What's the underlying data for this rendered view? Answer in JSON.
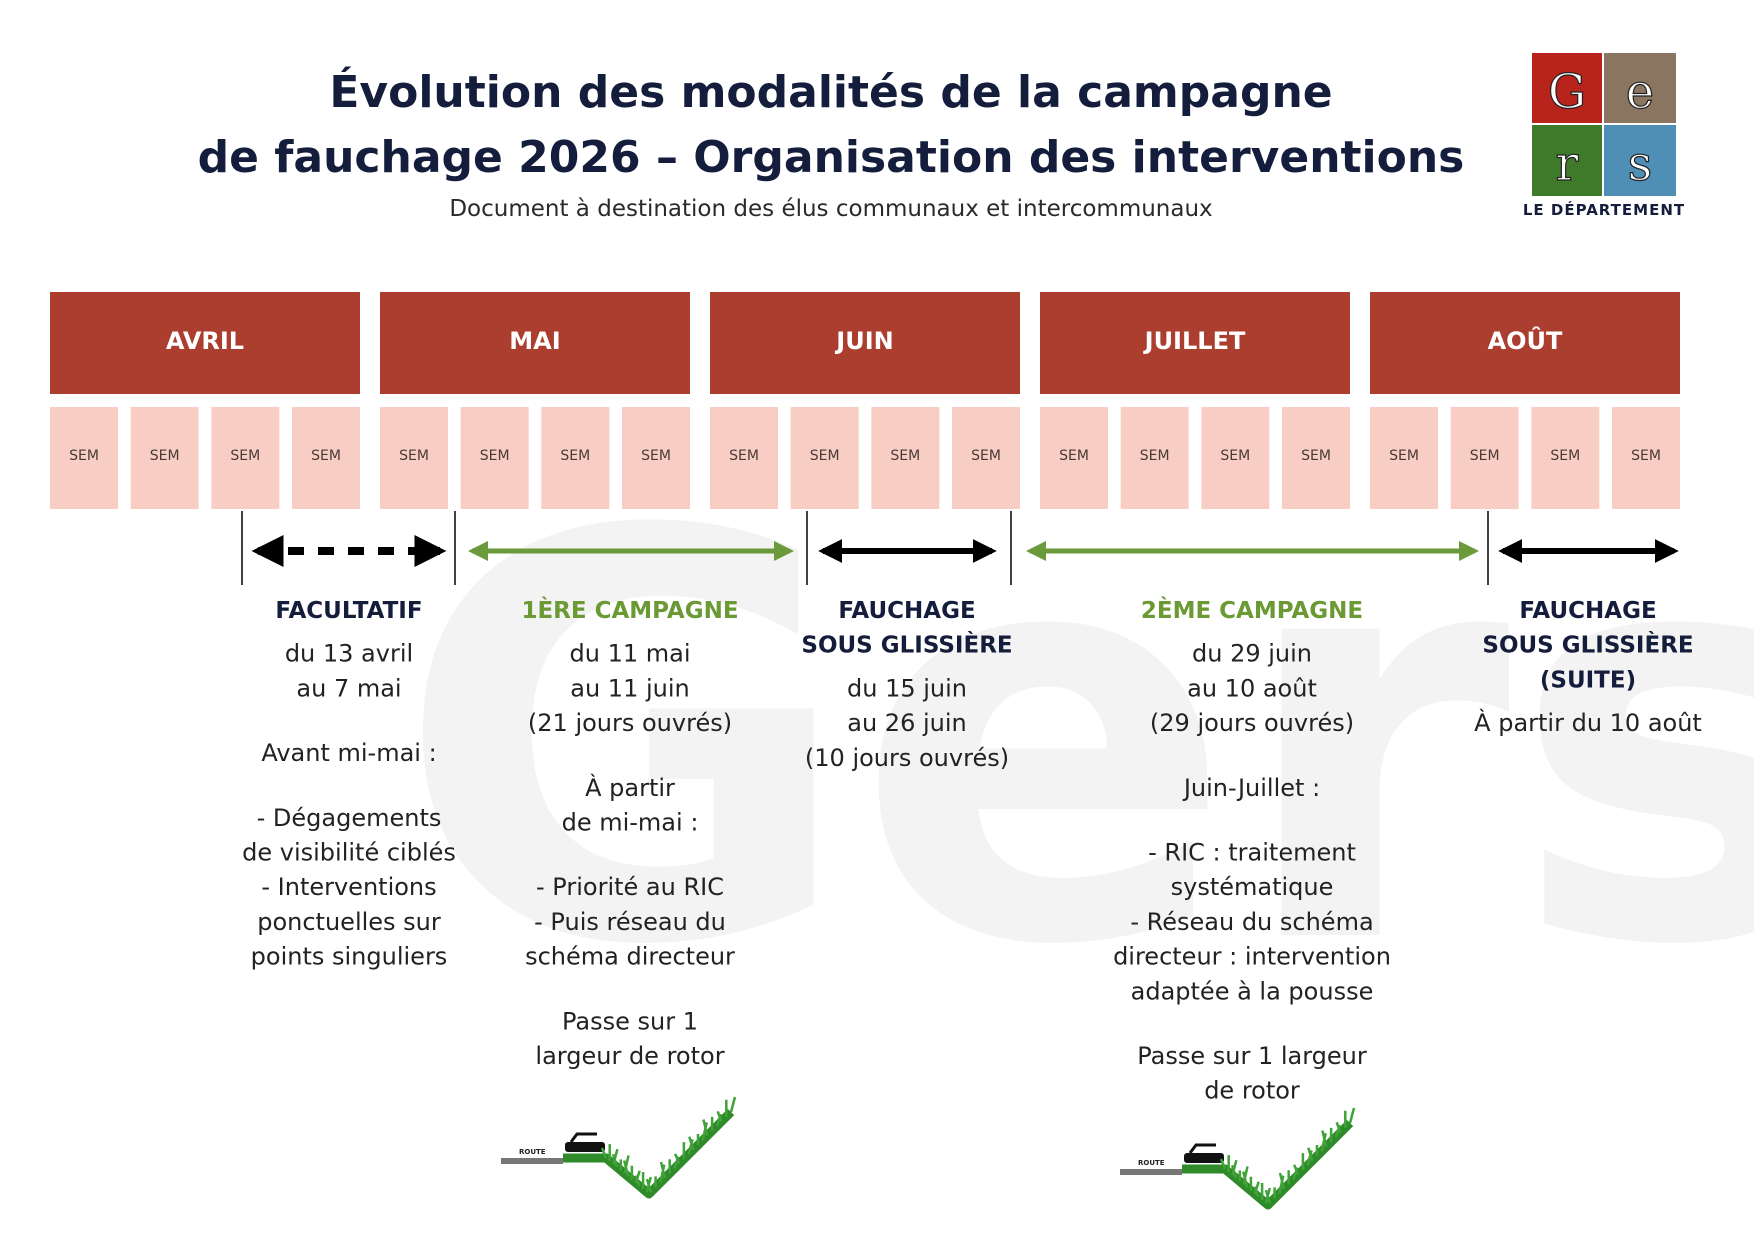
{
  "header": {
    "title_lines": [
      "Évolution des modalités de la campagne",
      "de fauchage 2026 – Organisation des interventions"
    ],
    "subtitle": "Document à destination des élus communaux et intercommunaux"
  },
  "logo": {
    "letters": [
      "G",
      "e",
      "r",
      "s"
    ],
    "caption": "LE DÉPARTEMENT"
  },
  "watermark": "Gers",
  "months": [
    {
      "name": "AVRIL",
      "weeks": [
        "SEM",
        "SEM",
        "SEM",
        "SEM"
      ]
    },
    {
      "name": "MAI",
      "weeks": [
        "SEM",
        "SEM",
        "SEM",
        "SEM"
      ]
    },
    {
      "name": "JUIN",
      "weeks": [
        "SEM",
        "SEM",
        "SEM",
        "SEM"
      ]
    },
    {
      "name": "JUILLET",
      "weeks": [
        "SEM",
        "SEM",
        "SEM",
        "SEM"
      ]
    },
    {
      "name": "AOÛT",
      "weeks": [
        "SEM",
        "SEM",
        "SEM",
        "SEM"
      ]
    }
  ],
  "phases": [
    {
      "title_lines": [
        "FACULTATIF"
      ],
      "paragraphs": [
        [
          "du 13 avril",
          "au 7 mai"
        ],
        [
          "Avant mi-mai :"
        ],
        [
          "- Dégagements",
          "de visibilité ciblés",
          "- Interventions",
          "ponctuelles sur",
          "points singuliers"
        ]
      ]
    },
    {
      "title_lines": [
        "1ÈRE CAMPAGNE"
      ],
      "paragraphs": [
        [
          "du 11 mai",
          "au 11 juin",
          "(21 jours ouvrés)"
        ],
        [
          "À partir",
          "de mi-mai :"
        ],
        [
          "- Priorité au RIC",
          "- Puis réseau du",
          "schéma directeur"
        ],
        [
          "Passe sur 1",
          "largeur de rotor"
        ]
      ]
    },
    {
      "title_lines": [
        "FAUCHAGE",
        "SOUS GLISSIÈRE"
      ],
      "paragraphs": [
        [
          "du 15 juin",
          "au 26 juin",
          "(10 jours ouvrés)"
        ]
      ]
    },
    {
      "title_lines": [
        "2ÈME CAMPAGNE"
      ],
      "paragraphs": [
        [
          "du 29 juin",
          "au 10 août",
          "(29 jours ouvrés)"
        ],
        [
          "Juin-Juillet :"
        ],
        [
          "- RIC : traitement",
          "systématique",
          "- Réseau du schéma",
          "directeur : intervention",
          "adaptée à la pousse"
        ],
        [
          "Passe sur 1 largeur",
          "de rotor"
        ]
      ]
    },
    {
      "title_lines": [
        "FAUCHAGE",
        "SOUS GLISSIÈRE",
        "(SUITE)"
      ],
      "paragraphs": [
        [
          "À partir du 10 août"
        ]
      ]
    }
  ],
  "illustrations": [
    {
      "label": "ROUTE"
    },
    {
      "label": "ROUTE"
    }
  ]
}
